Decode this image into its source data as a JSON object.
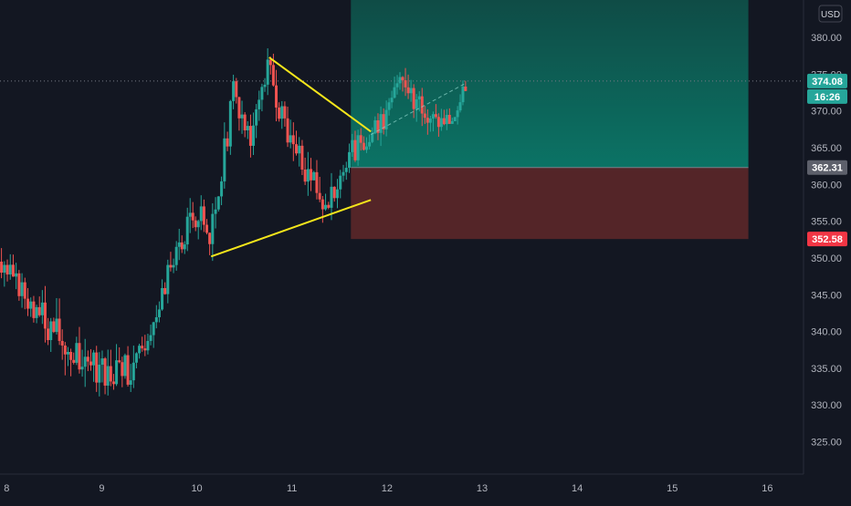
{
  "chart_data": {
    "type": "candlestick",
    "currency": "USD",
    "ylim": [
      320.6,
      385.1
    ],
    "xlim": [
      7.93,
      16.38
    ],
    "y_ticks": [
      {
        "v": 380,
        "label": "380.00"
      },
      {
        "v": 375,
        "label": "375.00"
      },
      {
        "v": 370,
        "label": "370.00"
      },
      {
        "v": 365,
        "label": "365.00"
      },
      {
        "v": 360,
        "label": "360.00"
      },
      {
        "v": 355,
        "label": "355.00"
      },
      {
        "v": 350,
        "label": "350.00"
      },
      {
        "v": 345,
        "label": "345.00"
      },
      {
        "v": 340,
        "label": "340.00"
      },
      {
        "v": 335,
        "label": "335.00"
      },
      {
        "v": 330,
        "label": "330.00"
      },
      {
        "v": 325,
        "label": "325.00"
      }
    ],
    "x_ticks": [
      {
        "v": 8,
        "label": "8"
      },
      {
        "v": 9,
        "label": "9"
      },
      {
        "v": 10,
        "label": "10"
      },
      {
        "v": 11,
        "label": "11"
      },
      {
        "v": 12,
        "label": "12"
      },
      {
        "v": 13,
        "label": "13"
      },
      {
        "v": 14,
        "label": "14"
      },
      {
        "v": 15,
        "label": "15"
      },
      {
        "v": 16,
        "label": "16"
      }
    ],
    "last_price": {
      "value": 374.08,
      "label": "374.08"
    },
    "countdown": "16:26",
    "entry_price": {
      "value": 362.31,
      "label": "362.31"
    },
    "stop_price": {
      "value": 352.58,
      "label": "352.58"
    },
    "position": {
      "x_start": 11.62,
      "x_end": 15.8,
      "target": 385.1,
      "entry": 362.31,
      "stop": 352.58
    },
    "triangle": {
      "upper": [
        [
          10.76,
          377.3
        ],
        [
          11.83,
          367.2
        ]
      ],
      "lower": [
        [
          10.15,
          350.2
        ],
        [
          11.83,
          357.9
        ]
      ]
    },
    "projection": [
      [
        11.83,
        366.8
      ],
      [
        12.83,
        373.8
      ]
    ],
    "trend_start": 10.03,
    "trend_peak": 10.76,
    "trend_end": 12.84,
    "colors": {
      "up": "#26a69a",
      "down": "#ef5350",
      "target_zone_top": "#0f4c46",
      "target_zone_bottom": "#0b7365",
      "stop_zone": "#542528",
      "triangle": "#f5e61b",
      "last_price": "#26a69a",
      "entry": "#5d606b",
      "stop": "#f23645"
    },
    "segments": [
      {
        "x0": 7.93,
        "x1": 8.3,
        "y0": 349.5,
        "y1": 343.5,
        "amp": 2.2,
        "seed": 3
      },
      {
        "x0": 8.3,
        "x1": 8.72,
        "y0": 343.5,
        "y1": 336.5,
        "amp": 3.2,
        "seed": 7
      },
      {
        "x0": 8.72,
        "x1": 9.05,
        "y0": 336.5,
        "y1": 335.0,
        "amp": 3.2,
        "seed": 11
      },
      {
        "x0": 9.05,
        "x1": 9.35,
        "y0": 335.0,
        "y1": 334.5,
        "amp": 2.8,
        "seed": 13
      },
      {
        "x0": 9.35,
        "x1": 9.8,
        "y0": 334.5,
        "y1": 350.5,
        "amp": 2.2,
        "seed": 17
      },
      {
        "x0": 9.8,
        "x1": 10.03,
        "y0": 350.5,
        "y1": 357.0,
        "amp": 2.5,
        "seed": 19
      },
      {
        "x0": 10.03,
        "x1": 10.15,
        "y0": 357.0,
        "y1": 351.5,
        "amp": 2.0,
        "seed": 23
      },
      {
        "x0": 10.15,
        "x1": 10.4,
        "y0": 351.5,
        "y1": 372.5,
        "amp": 2.6,
        "seed": 29
      },
      {
        "x0": 10.4,
        "x1": 10.58,
        "y0": 372.5,
        "y1": 366.0,
        "amp": 2.4,
        "seed": 31
      },
      {
        "x0": 10.58,
        "x1": 10.76,
        "y0": 366.0,
        "y1": 375.5,
        "amp": 2.0,
        "seed": 37
      },
      {
        "x0": 10.76,
        "x1": 11.0,
        "y0": 375.5,
        "y1": 365.5,
        "amp": 2.6,
        "seed": 41
      },
      {
        "x0": 11.0,
        "x1": 11.4,
        "y0": 365.5,
        "y1": 357.0,
        "amp": 2.6,
        "seed": 43
      },
      {
        "x0": 11.4,
        "x1": 11.65,
        "y0": 357.0,
        "y1": 364.5,
        "amp": 2.2,
        "seed": 47
      },
      {
        "x0": 11.65,
        "x1": 11.95,
        "y0": 364.5,
        "y1": 368.0,
        "amp": 2.0,
        "seed": 53
      },
      {
        "x0": 11.95,
        "x1": 12.15,
        "y0": 368.0,
        "y1": 374.0,
        "amp": 1.8,
        "seed": 59
      },
      {
        "x0": 12.15,
        "x1": 12.5,
        "y0": 374.0,
        "y1": 368.5,
        "amp": 2.0,
        "seed": 61
      },
      {
        "x0": 12.5,
        "x1": 12.7,
        "y0": 368.5,
        "y1": 369.0,
        "amp": 1.8,
        "seed": 67
      },
      {
        "x0": 12.7,
        "x1": 12.84,
        "y0": 369.0,
        "y1": 374.08,
        "amp": 1.2,
        "seed": 71
      }
    ],
    "candle_step": 0.03
  }
}
